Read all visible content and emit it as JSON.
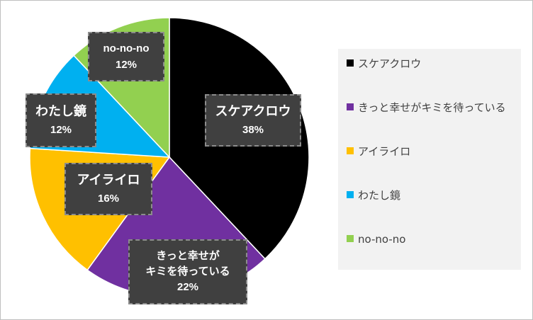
{
  "chart_data": {
    "type": "pie",
    "categories": [
      "スケアクロウ",
      "きっと幸せがキミを待っている",
      "アイライロ",
      "わたし鏡",
      "no-no-no"
    ],
    "values": [
      38,
      22,
      16,
      12,
      12
    ],
    "value_labels": [
      "38%",
      "22%",
      "16%",
      "12%",
      "12%"
    ],
    "colors": [
      "#000000",
      "#7030a0",
      "#ffc000",
      "#00b0f0",
      "#92d050"
    ],
    "label_lines": [
      [
        "スケアクロウ"
      ],
      [
        "きっと幸せが",
        "キミを待っている"
      ],
      [
        "アイライロ"
      ],
      [
        "わたし鏡"
      ],
      [
        "no-no-no"
      ]
    ],
    "start_angle_deg": 0,
    "direction": "clockwise",
    "legend_position": "right"
  }
}
